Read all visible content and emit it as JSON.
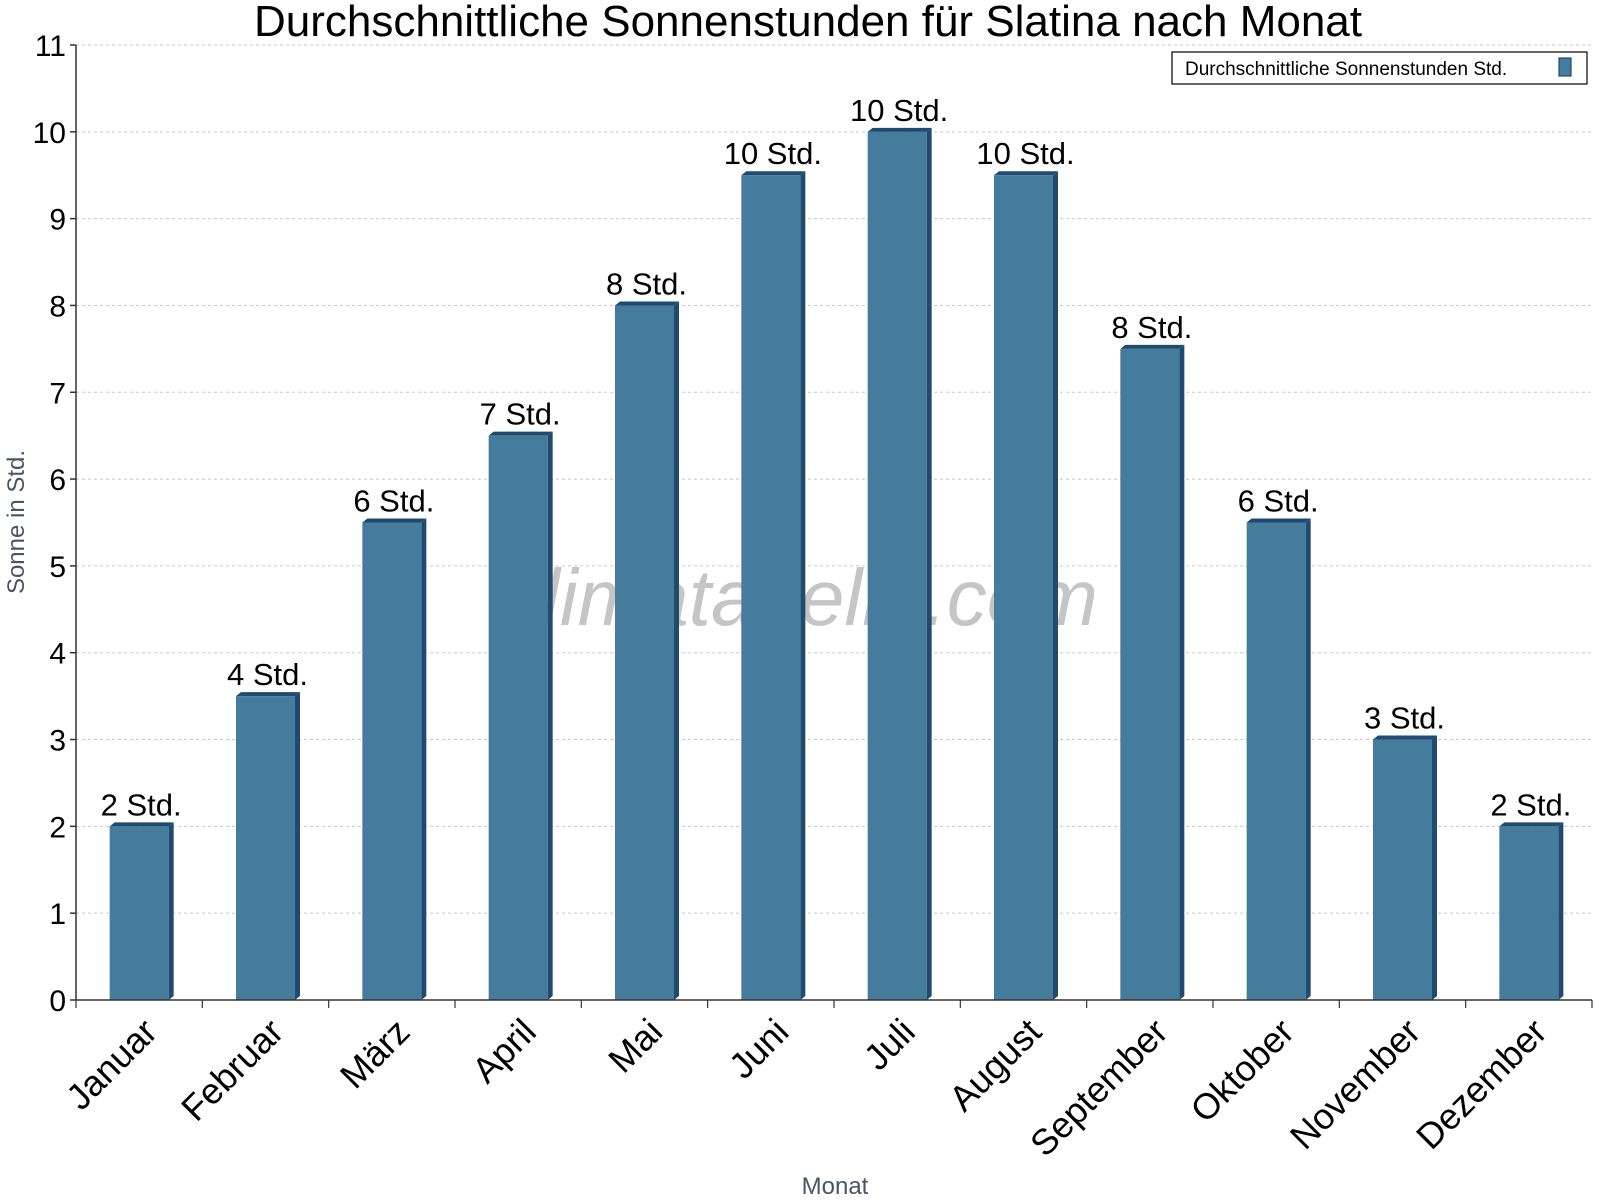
{
  "chart_data": {
    "type": "bar",
    "title": "Durchschnittliche Sonnenstunden für Slatina nach Monat",
    "xlabel": "Monat",
    "ylabel": "Sonne in Std.",
    "ylim": [
      0,
      11
    ],
    "yticks": [
      "0",
      "1",
      "2",
      "3",
      "4",
      "5",
      "6",
      "7",
      "8",
      "9",
      "10",
      "11"
    ],
    "grid": true,
    "legend_position": "top-right",
    "categories": [
      "Januar",
      "Februar",
      "März",
      "April",
      "Mai",
      "Juni",
      "Juli",
      "August",
      "September",
      "Oktober",
      "November",
      "Dezember"
    ],
    "series": [
      {
        "name": "Durchschnittliche Sonnenstunden Std.",
        "values": [
          2,
          3.5,
          5.5,
          6.5,
          8,
          9.5,
          10,
          9.5,
          7.5,
          5.5,
          3,
          2
        ],
        "labels": [
          "2 Std.",
          "4 Std.",
          "6 Std.",
          "7 Std.",
          "8 Std.",
          "10 Std.",
          "10 Std.",
          "10 Std.",
          "8 Std.",
          "6 Std.",
          "3 Std.",
          "2 Std."
        ],
        "color": "#457b9d"
      }
    ]
  },
  "watermark": "klimatabelle.com",
  "colors": {
    "bar": "#457b9d",
    "bar_side": "#1e4b6e",
    "grid": "#c8c8c8"
  }
}
